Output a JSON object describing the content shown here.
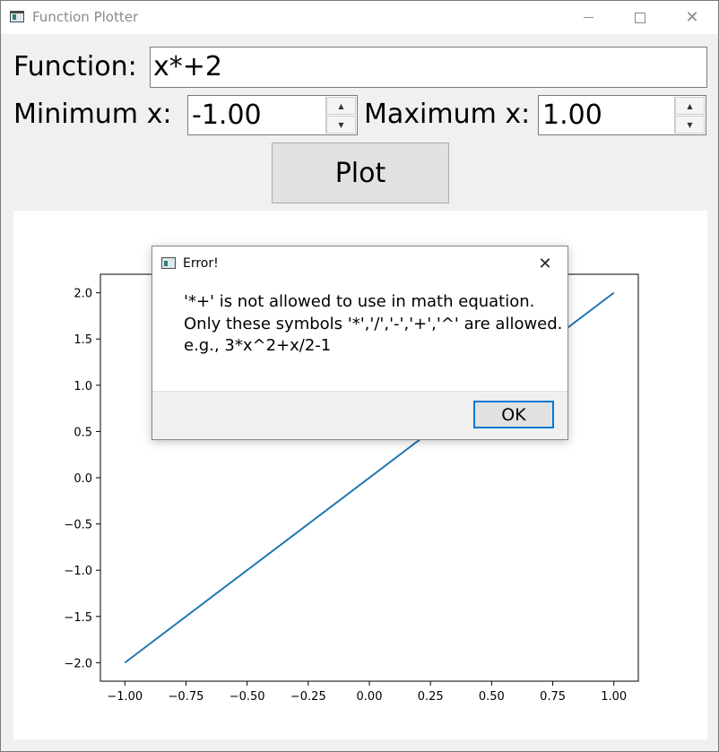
{
  "window": {
    "title": "Function Plotter",
    "icon": "app-icon"
  },
  "form": {
    "function_label": "Function:",
    "function_value": "x*+2",
    "min_label": "Minimum x:",
    "min_value": "-1.00",
    "max_label": "Maximum x:",
    "max_value": "1.00",
    "plot_label": "Plot"
  },
  "dialog": {
    "title": "Error!",
    "message_lines": [
      "'*+' is not allowed to use in math equation.",
      "Only these symbols '*','/','-','+','^' are allowed.",
      "e.g., 3*x^2+x/2-1"
    ],
    "ok_label": "OK"
  },
  "chart_data": {
    "type": "line",
    "x": [
      -1.0,
      1.0
    ],
    "series": [
      {
        "values": [
          -2.0,
          2.0
        ],
        "color": "#1f77b4"
      }
    ],
    "xlim": [
      -1.1,
      1.1
    ],
    "ylim": [
      -2.2,
      2.2
    ],
    "xticks": [
      "−1.00",
      "−0.75",
      "−0.50",
      "−0.25",
      "0.00",
      "0.25",
      "0.50",
      "0.75",
      "1.00"
    ],
    "xtick_values": [
      -1.0,
      -0.75,
      -0.5,
      -0.25,
      0.0,
      0.25,
      0.5,
      0.75,
      1.0
    ],
    "yticks": [
      "−2.0",
      "−1.5",
      "−1.0",
      "−0.5",
      "0.0",
      "0.5",
      "1.0",
      "1.5",
      "2.0"
    ],
    "ytick_values": [
      -2.0,
      -1.5,
      -1.0,
      -0.5,
      0.0,
      0.5,
      1.0,
      1.5,
      2.0
    ],
    "grid": false
  }
}
